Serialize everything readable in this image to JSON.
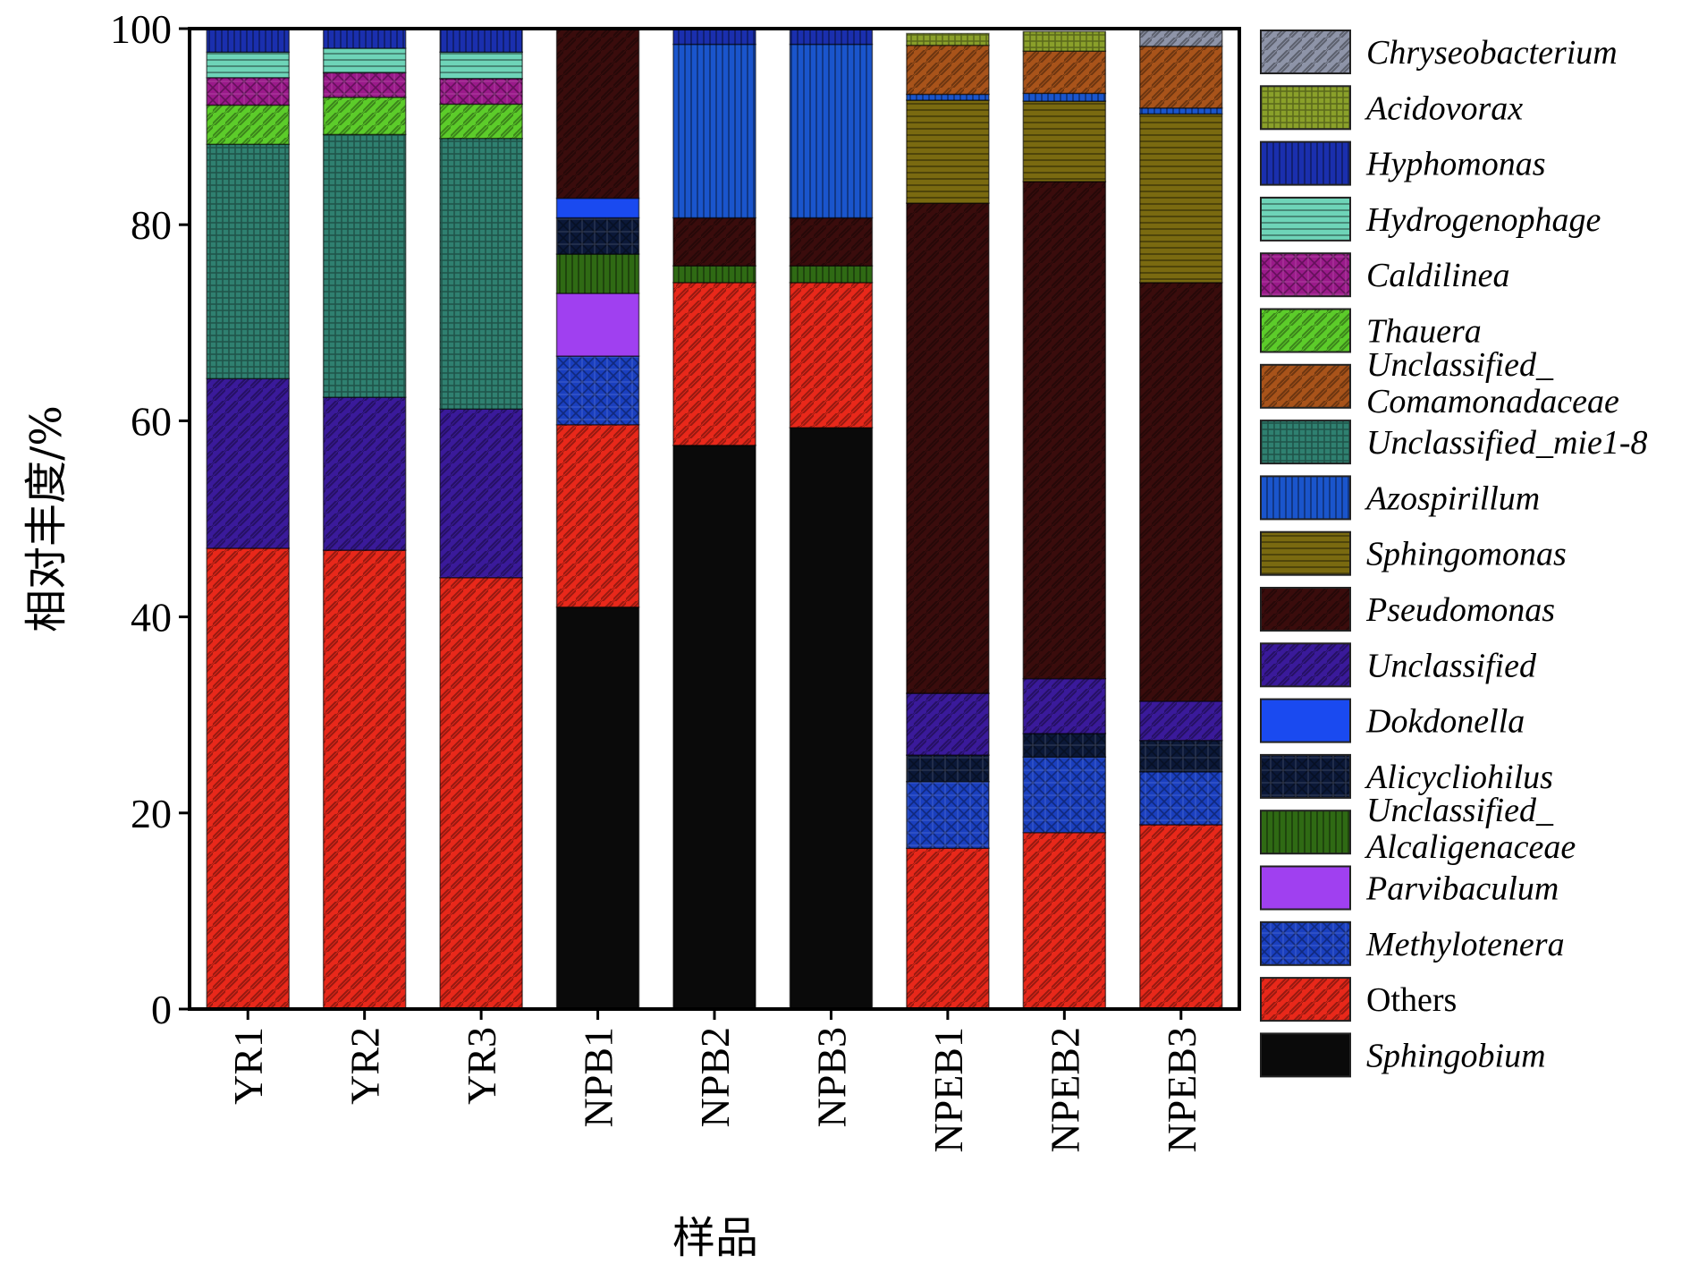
{
  "chart_data": {
    "type": "bar",
    "stacked": true,
    "ylabel": "相对丰度/%",
    "xlabel": "样品",
    "ylim": [
      0,
      100
    ],
    "yticks": [
      0,
      20,
      40,
      60,
      80,
      100
    ],
    "grid": false,
    "legend_position": "right",
    "categories": [
      "YR1",
      "YR2",
      "YR3",
      "NPB1",
      "NPB2",
      "NPB3",
      "NPEB1",
      "NPEB2",
      "NPEB3"
    ],
    "series": [
      {
        "name": "Sphingobium",
        "color": "#0a0a0a",
        "pattern": "solid",
        "values": [
          0,
          0,
          0,
          41,
          57.5,
          59.3,
          0,
          0,
          0
        ]
      },
      {
        "name": "Others",
        "color": "#e8281a",
        "pattern": "diag",
        "values": [
          47,
          46.8,
          44,
          18.6,
          16.6,
          14.8,
          16.4,
          18,
          18.8
        ]
      },
      {
        "name": "Methylotenera",
        "color": "#1a3fbf",
        "pattern": "check",
        "values": [
          0,
          0,
          0,
          7,
          0,
          0,
          6.8,
          7.7,
          5.4
        ]
      },
      {
        "name": "Parvibaculum",
        "color": "#a040f0",
        "pattern": "plain",
        "values": [
          0,
          0,
          0,
          6.4,
          0,
          0,
          0,
          0,
          0
        ]
      },
      {
        "name": "Unclassified_\nAlcaligenaceae",
        "color": "#2f6a14",
        "pattern": "vlines",
        "values": [
          0,
          0,
          0,
          4,
          1.7,
          1.7,
          0,
          0,
          0
        ]
      },
      {
        "name": "Alicycliohilus",
        "color": "#0b1838",
        "pattern": "check",
        "values": [
          0,
          0,
          0,
          3.7,
          0,
          0,
          2.7,
          2.4,
          3.2
        ]
      },
      {
        "name": "Dokdonella",
        "color": "#1a4af0",
        "pattern": "plain",
        "values": [
          0,
          0,
          0,
          2,
          0,
          0,
          0,
          0,
          0
        ]
      },
      {
        "name": "Unclassified",
        "color": "#3a1a9a",
        "pattern": "diag",
        "values": [
          17.3,
          15.6,
          17.2,
          0,
          0,
          0,
          6.3,
          5.6,
          4
        ]
      },
      {
        "name": "Pseudomonas",
        "color": "#3a0c0c",
        "pattern": "diag",
        "values": [
          0,
          0,
          0,
          17.3,
          4.9,
          4.9,
          50,
          50.7,
          42.7
        ]
      },
      {
        "name": "Sphingomonas",
        "color": "#7a6a10",
        "pattern": "hlines",
        "values": [
          0,
          0,
          0,
          0,
          0,
          0,
          10.5,
          8.2,
          17.2
        ]
      },
      {
        "name": "Azospirillum",
        "color": "#1a55cc",
        "pattern": "vlines",
        "values": [
          0,
          0,
          0,
          0,
          17.7,
          17.7,
          0.6,
          0.8,
          0.6
        ]
      },
      {
        "name": "Unclassified_mie1-8",
        "color": "#2f8070",
        "pattern": "grid",
        "values": [
          23.9,
          26.8,
          27.6,
          0,
          0,
          0,
          0,
          0,
          0
        ]
      },
      {
        "name": "Unclassified_\nComamonadaceae",
        "color": "#a8531a",
        "pattern": "diag",
        "values": [
          0,
          0,
          0,
          0,
          0,
          0,
          5,
          4.3,
          6.3
        ]
      },
      {
        "name": "Thauera",
        "color": "#5ccc2a",
        "pattern": "diag",
        "values": [
          4,
          3.8,
          3.5,
          0,
          0,
          0,
          0,
          0,
          0
        ]
      },
      {
        "name": "Caldilinea",
        "color": "#9a1a8a",
        "pattern": "check",
        "values": [
          2.8,
          2.5,
          2.6,
          0,
          0,
          0,
          0,
          0,
          0
        ]
      },
      {
        "name": "Hydrogenophage",
        "color": "#6ed4b8",
        "pattern": "hlines",
        "values": [
          2.6,
          2.5,
          2.7,
          0,
          0,
          0,
          0,
          0,
          0
        ]
      },
      {
        "name": "Hyphomonas",
        "color": "#1a2fae",
        "pattern": "vlines",
        "values": [
          2.4,
          2,
          2.4,
          0,
          2.6,
          2.6,
          0,
          0,
          0
        ]
      },
      {
        "name": "Acidovorax",
        "color": "#8aa02a",
        "pattern": "grid",
        "values": [
          0,
          0,
          0,
          0,
          0,
          0,
          1.2,
          2,
          0
        ]
      },
      {
        "name": "Chryseobacterium",
        "color": "#8e94a8",
        "pattern": "diag",
        "values": [
          0,
          0,
          0,
          0,
          0,
          0,
          0,
          0,
          1.6
        ]
      }
    ],
    "legend_order": [
      "Chryseobacterium",
      "Acidovorax",
      "Hyphomonas",
      "Hydrogenophage",
      "Caldilinea",
      "Thauera",
      "Unclassified_\nComamonadaceae",
      "Unclassified_mie1-8",
      "Azospirillum",
      "Sphingomonas",
      "Pseudomonas",
      "Unclassified",
      "Dokdonella",
      "Alicycliohilus",
      "Unclassified_\nAlcaligenaceae",
      "Parvibaculum",
      "Methylotenera",
      "Others",
      "Sphingobium"
    ],
    "upright_legend_labels": [
      "Others"
    ]
  }
}
